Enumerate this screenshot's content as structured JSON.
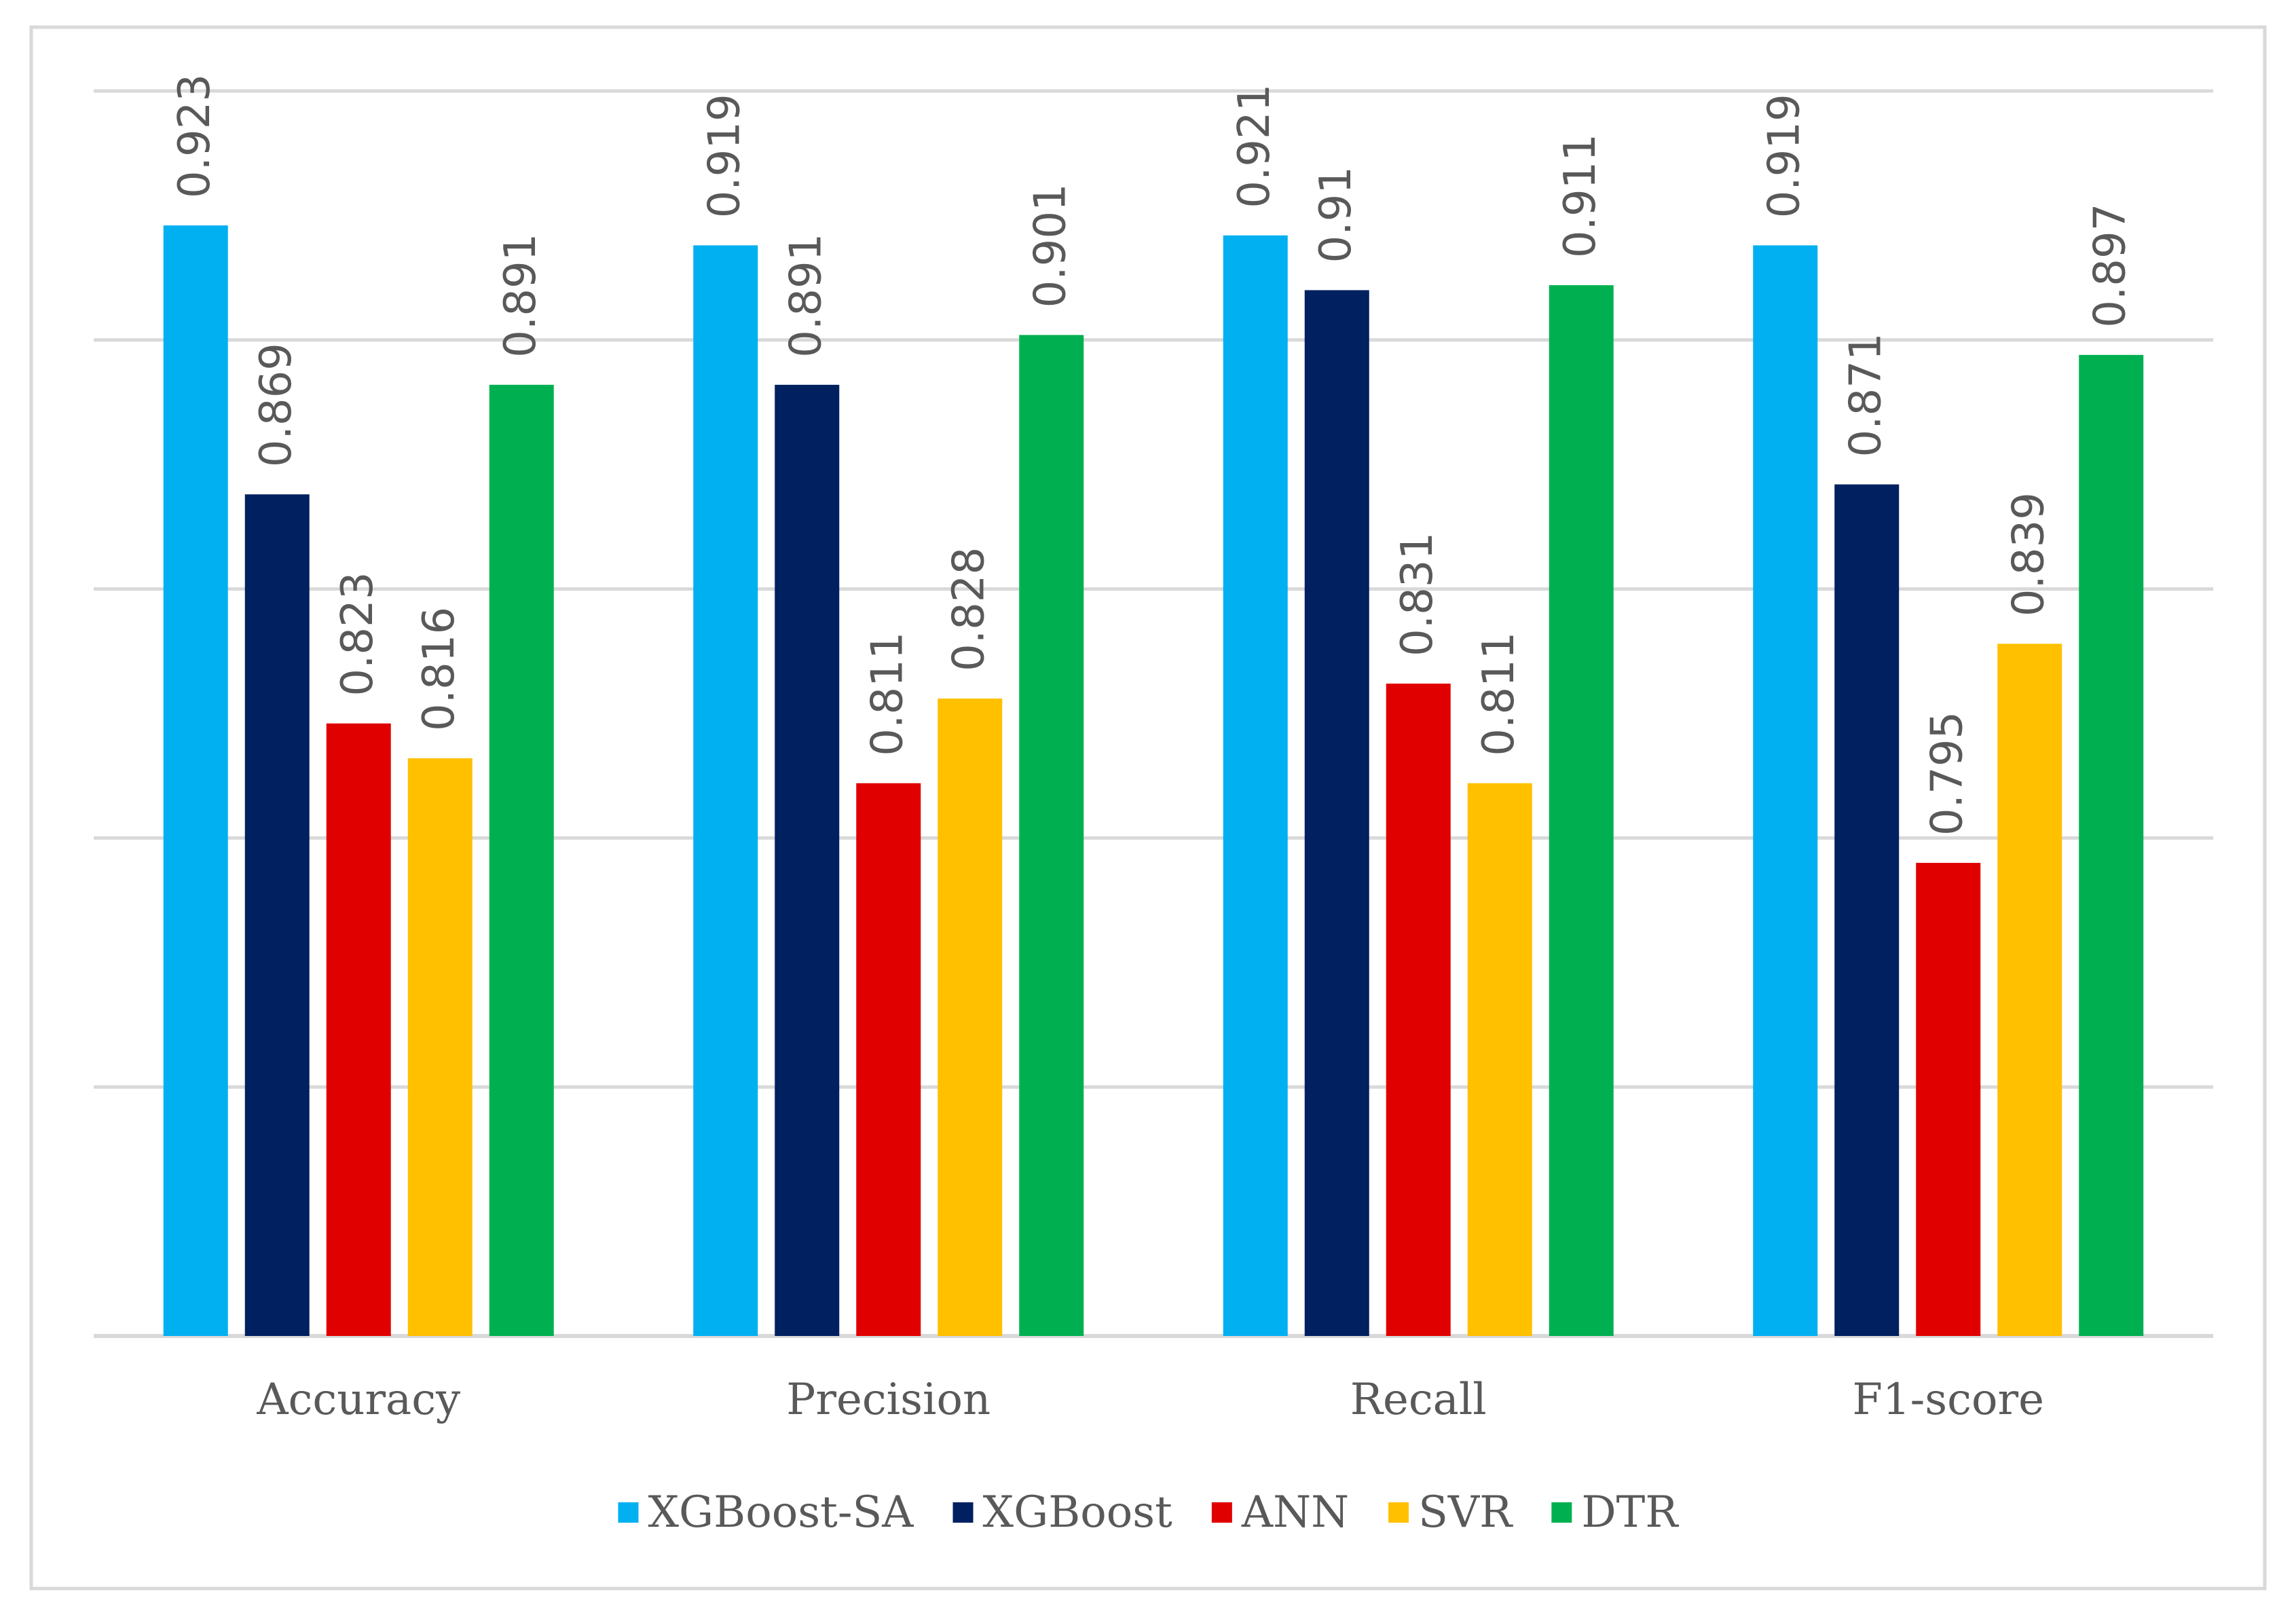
{
  "chart_data": {
    "type": "bar",
    "title": "",
    "xlabel": "",
    "ylabel": "",
    "categories": [
      "Accuracy",
      "Precision",
      "Recall",
      "F1-score"
    ],
    "series": [
      {
        "name": "XGBoost-SA",
        "color": "#00B0F0",
        "values": [
          0.923,
          0.919,
          0.921,
          0.919
        ],
        "labels": [
          "0.923",
          "0.919",
          "0.921",
          "0.919"
        ]
      },
      {
        "name": "XGBoost",
        "color": "#002060",
        "values": [
          0.869,
          0.891,
          0.91,
          0.871
        ],
        "labels": [
          "0.869",
          "0.891",
          "0.91",
          "0.871"
        ]
      },
      {
        "name": "ANN",
        "color": "#E00000",
        "values": [
          0.823,
          0.811,
          0.831,
          0.795
        ],
        "labels": [
          "0.823",
          "0.811",
          "0.831",
          "0.795"
        ]
      },
      {
        "name": "SVR",
        "color": "#FFC000",
        "values": [
          0.816,
          0.828,
          0.811,
          0.839
        ],
        "labels": [
          "0.816",
          "0.828",
          "0.811",
          "0.839"
        ]
      },
      {
        "name": "DTR",
        "color": "#00B050",
        "values": [
          0.891,
          0.901,
          0.911,
          0.897
        ],
        "labels": [
          "0.891",
          "0.901",
          "0.911",
          "0.897"
        ]
      }
    ],
    "ylim": [
      0.7,
      0.95
    ],
    "ytick_step": 0.05,
    "grid": true,
    "legend_position": "bottom"
  },
  "colors": {
    "grid": "#D9D9D9",
    "frame": "#D9D9D9",
    "text": "#595959"
  }
}
